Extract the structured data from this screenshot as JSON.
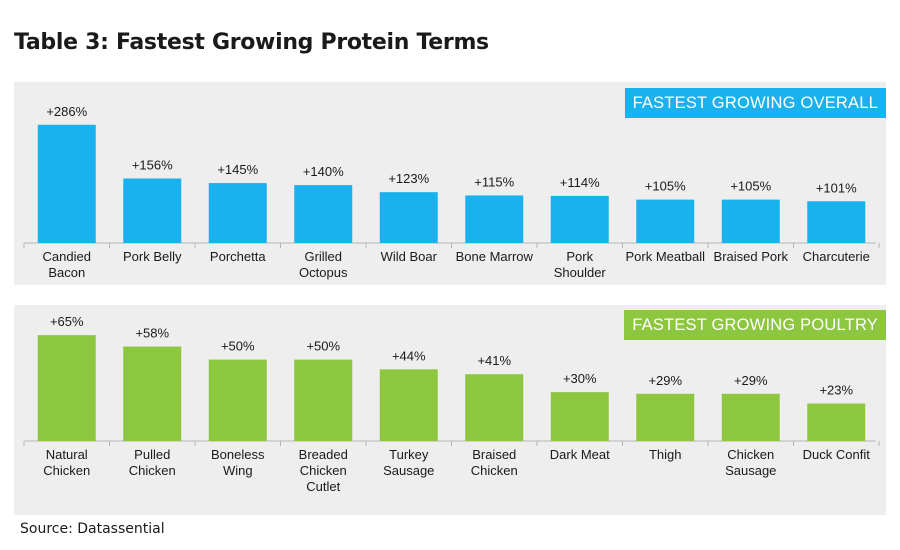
{
  "title": "Table 3: Fastest Growing Protein Terms",
  "source": "Source: Datassential",
  "chart_data": [
    {
      "type": "bar",
      "title": "FASTEST GROWING OVERALL",
      "color": "#1ab2ee",
      "ylim": [
        0,
        300
      ],
      "categories": [
        "Candied\nBacon",
        "Pork Belly",
        "Porchetta",
        "Grilled\nOctopus",
        "Wild Boar",
        "Bone Marrow",
        "Pork\nShoulder",
        "Pork Meatball",
        "Braised Pork",
        "Charcuterie"
      ],
      "values": [
        286,
        156,
        145,
        140,
        123,
        115,
        114,
        105,
        105,
        101
      ],
      "labels": [
        "+286%",
        "+156%",
        "+145%",
        "+140%",
        "+123%",
        "+115%",
        "+114%",
        "+105%",
        "+105%",
        "+101%"
      ]
    },
    {
      "type": "bar",
      "title": "FASTEST GROWING POULTRY",
      "color": "#8dc63f",
      "ylim": [
        0,
        70
      ],
      "categories": [
        "Natural\nChicken",
        "Pulled\nChicken",
        "Boneless\nWing",
        "Breaded\nChicken\nCutlet",
        "Turkey\nSausage",
        "Braised\nChicken",
        "Dark Meat",
        "Thigh",
        "Chicken\nSausage",
        "Duck Confit"
      ],
      "values": [
        65,
        58,
        50,
        50,
        44,
        41,
        30,
        29,
        29,
        23
      ],
      "labels": [
        "+65%",
        "+58%",
        "+50%",
        "+50%",
        "+44%",
        "+41%",
        "+30%",
        "+29%",
        "+29%",
        "+23%"
      ]
    }
  ]
}
